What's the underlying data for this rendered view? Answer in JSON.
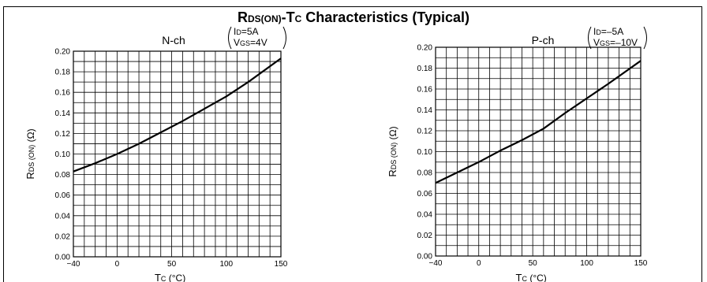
{
  "page": {
    "title_main": "R",
    "title_sub": "DS(ON)",
    "title_mid": "-T",
    "title_sub2": "C",
    "title_rest": " Characteristics (Typical)"
  },
  "chart_data": [
    {
      "type": "line",
      "title": "N-ch",
      "conditions": [
        "I",
        "D",
        "=5A",
        "V",
        "GS",
        "=4V"
      ],
      "xlabel": "TC (°C)",
      "ylabel": "RDS (ON) (Ω)",
      "xlim": [
        -40,
        150
      ],
      "ylim": [
        0,
        0.2
      ],
      "xticks": [
        -40,
        0,
        50,
        100,
        150
      ],
      "yticks": [
        0.0,
        0.02,
        0.04,
        0.06,
        0.08,
        0.1,
        0.12,
        0.14,
        0.16,
        0.18,
        0.2
      ],
      "ytick_labels": [
        "0.00",
        "0.02",
        "0.04",
        "0.06",
        "0.08",
        "0.10",
        "0.12",
        "0.14",
        "0.16",
        "0.18",
        "0.20"
      ],
      "grid": true,
      "series": [
        {
          "x": [
            -40,
            -20,
            0,
            20,
            40,
            60,
            80,
            100,
            120,
            150
          ],
          "y": [
            0.083,
            0.091,
            0.1,
            0.11,
            0.121,
            0.132,
            0.144,
            0.156,
            0.17,
            0.193
          ]
        }
      ]
    },
    {
      "type": "line",
      "title": "P-ch",
      "conditions": [
        "I",
        "D",
        "=–5A",
        "V",
        "GS",
        "=–10V"
      ],
      "xlabel": "TC (°C)",
      "ylabel": "RDS (ON) (Ω)",
      "xlim": [
        -40,
        150
      ],
      "ylim": [
        0,
        0.2
      ],
      "xticks": [
        -40,
        0,
        50,
        100,
        150
      ],
      "yticks": [
        0.0,
        0.02,
        0.04,
        0.06,
        0.08,
        0.1,
        0.12,
        0.14,
        0.16,
        0.18,
        0.2
      ],
      "ytick_labels": [
        "0.00",
        "0.02",
        "0.04",
        "0.06",
        "0.08",
        "0.10",
        "0.12",
        "0.14",
        "0.16",
        "0.18",
        "0.20"
      ],
      "grid": true,
      "series": [
        {
          "x": [
            -40,
            -20,
            0,
            20,
            40,
            60,
            80,
            100,
            120,
            150
          ],
          "y": [
            0.07,
            0.08,
            0.09,
            0.101,
            0.111,
            0.122,
            0.137,
            0.151,
            0.165,
            0.187
          ]
        }
      ]
    }
  ]
}
